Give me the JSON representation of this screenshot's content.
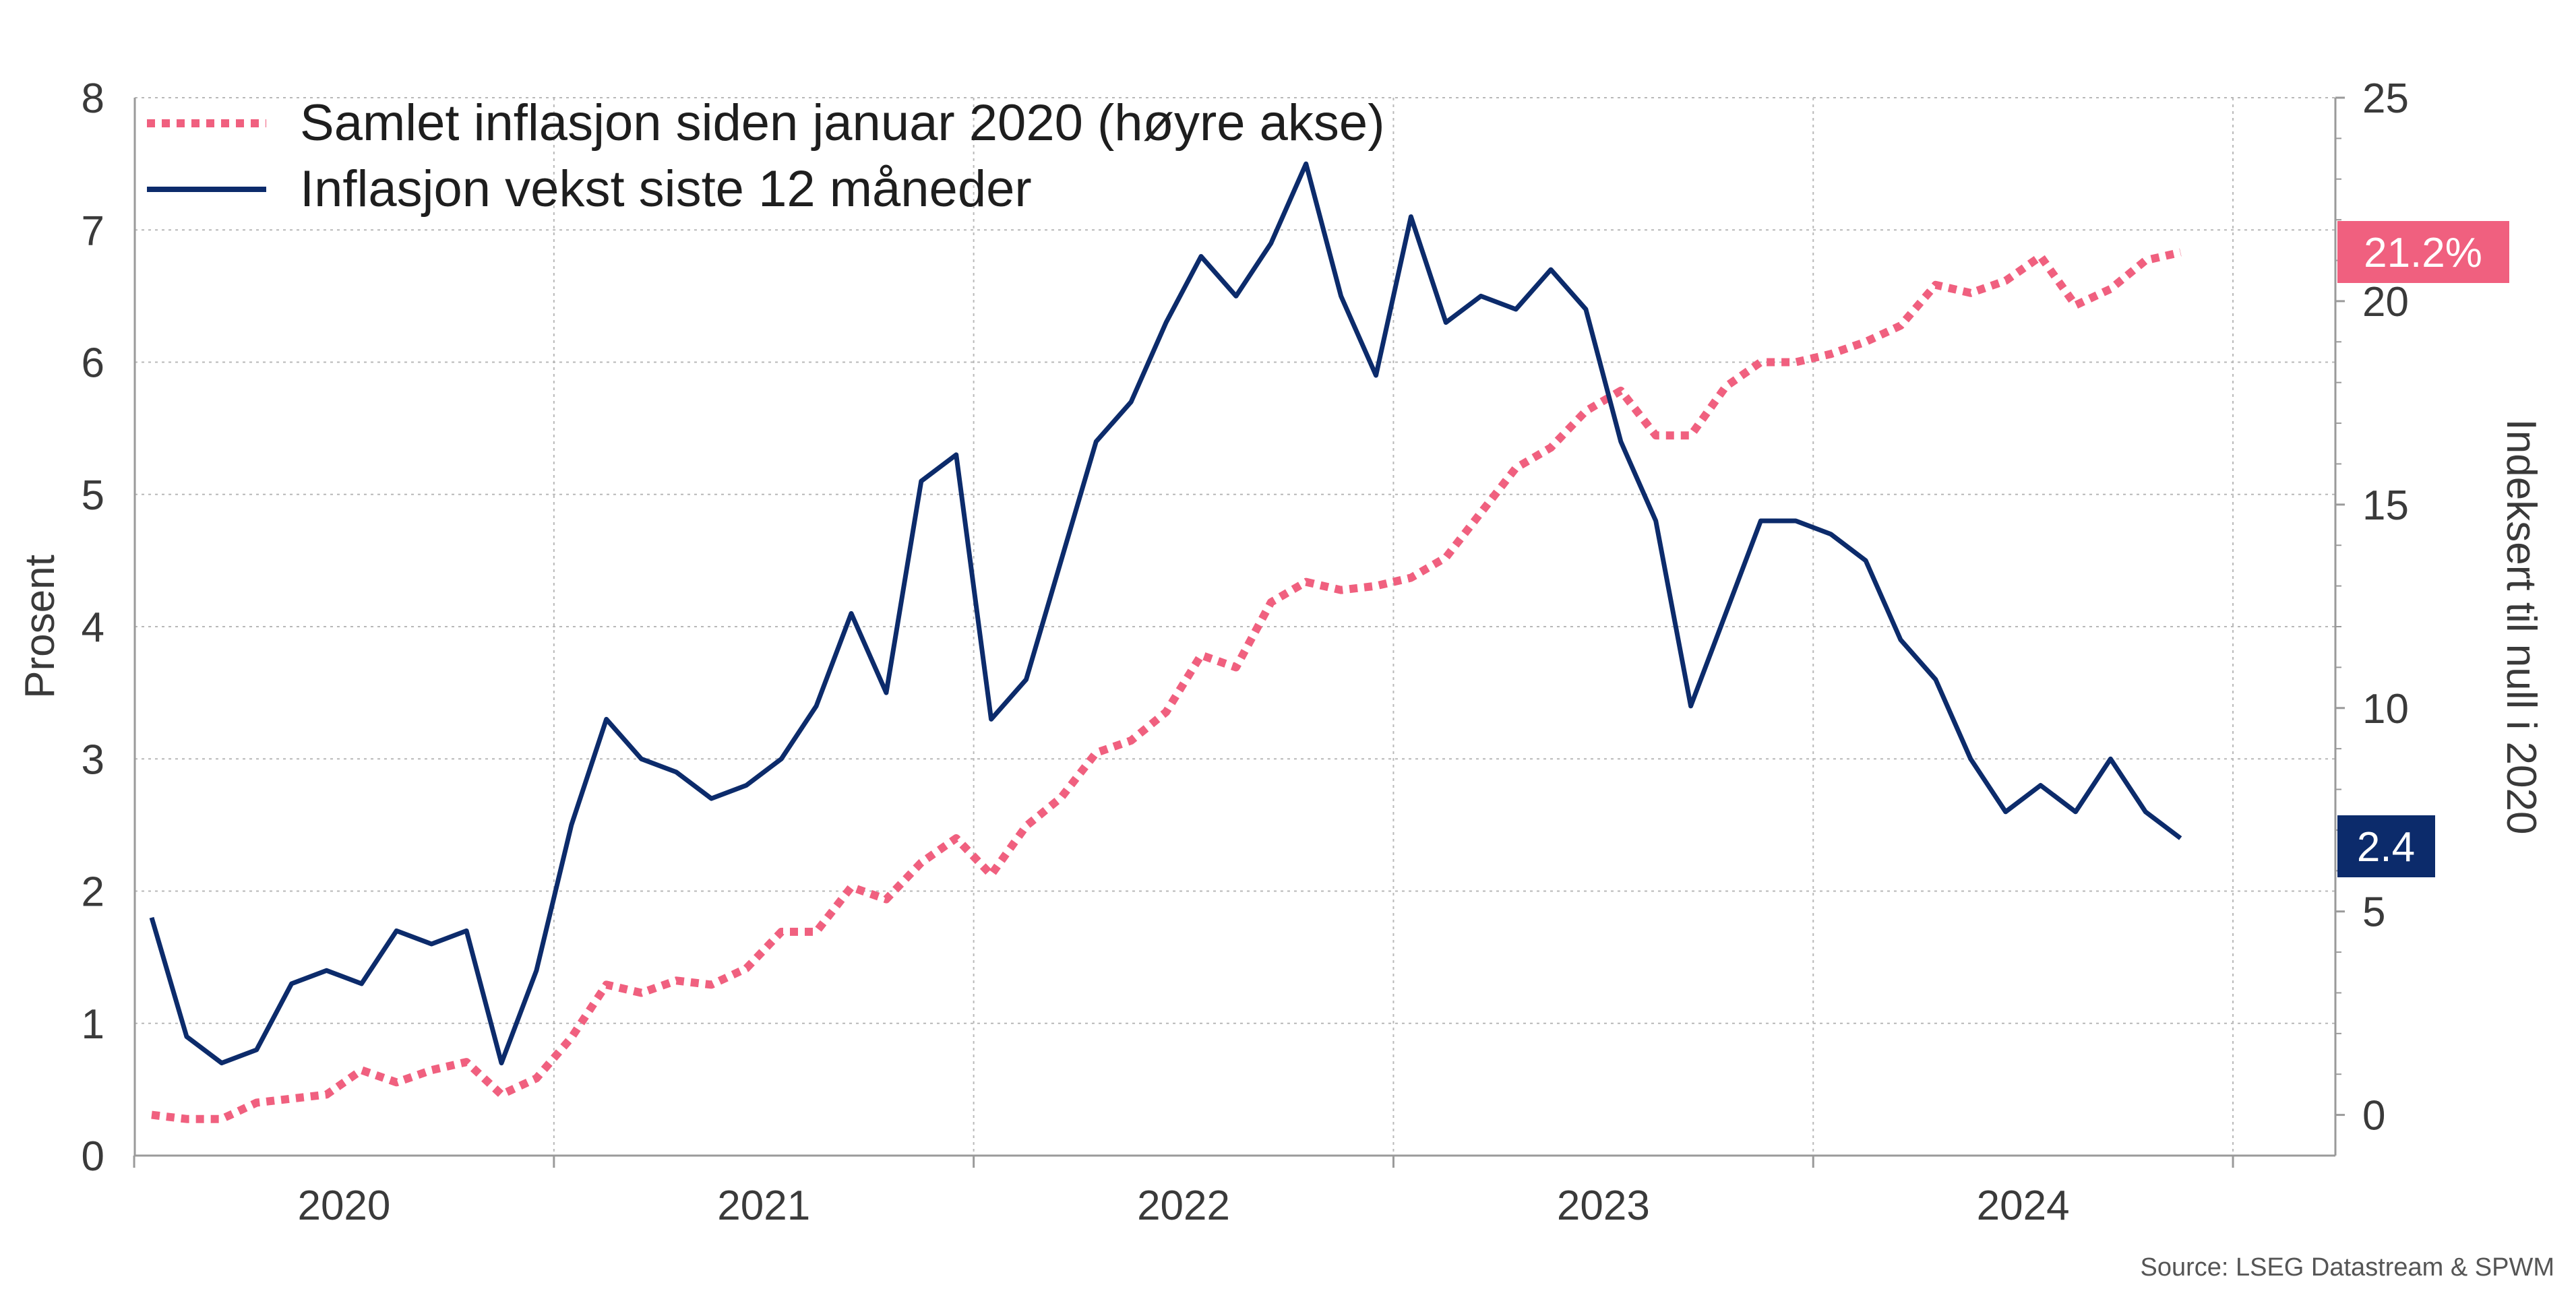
{
  "chart_data": {
    "type": "line",
    "title": "",
    "ylabel_left": "Prosent",
    "ylabel_right": "Indeksert til null i 2020",
    "ylim_left": [
      0,
      8
    ],
    "ylim_right": [
      -1,
      25
    ],
    "yticks_left": [
      "0",
      "1",
      "2",
      "3",
      "4",
      "5",
      "6",
      "7",
      "8"
    ],
    "yticks_right": [
      "0",
      "5",
      "10",
      "15",
      "20",
      "25"
    ],
    "xtick_labels": [
      "2020",
      "2021",
      "2022",
      "2023",
      "2024"
    ],
    "grid": true,
    "source": "Source: LSEG Datastream & SPWM",
    "x_start": "2020-01",
    "series": [
      {
        "name": "Samlet inflasjon siden januar 2020 (høyre akse)",
        "axis": "right",
        "color": "#f0607f",
        "style": "dotted",
        "end_label": "21.2%",
        "values": [
          0.0,
          -0.1,
          -0.1,
          0.3,
          0.4,
          0.5,
          1.1,
          0.8,
          1.1,
          1.3,
          0.5,
          0.9,
          1.9,
          3.2,
          3.0,
          3.3,
          3.2,
          3.6,
          4.5,
          4.5,
          5.6,
          5.3,
          6.2,
          6.8,
          5.9,
          7.1,
          7.8,
          8.9,
          9.2,
          9.9,
          11.3,
          11.0,
          12.6,
          13.1,
          12.9,
          13.0,
          13.2,
          13.7,
          14.8,
          15.9,
          16.4,
          17.3,
          17.8,
          16.7,
          16.7,
          17.9,
          18.5,
          18.5,
          18.7,
          19.0,
          19.4,
          20.4,
          20.2,
          20.5,
          21.1,
          19.9,
          20.3,
          21.0,
          21.2
        ],
        "notes": "right-axis percent, index 2020=0"
      },
      {
        "name": "Inflasjon vekst siste 12 måneder",
        "axis": "left",
        "color": "#0c2b6b",
        "style": "solid",
        "end_label": "2.4",
        "values": [
          1.8,
          0.9,
          0.7,
          0.8,
          1.3,
          1.4,
          1.3,
          1.7,
          1.6,
          1.7,
          0.7,
          1.4,
          2.5,
          3.3,
          3.0,
          2.9,
          2.7,
          2.8,
          3.0,
          3.4,
          4.1,
          3.5,
          5.1,
          5.3,
          3.3,
          3.6,
          4.5,
          5.4,
          5.7,
          6.3,
          6.8,
          6.5,
          6.9,
          7.5,
          6.5,
          5.9,
          7.1,
          6.3,
          6.5,
          6.4,
          6.7,
          6.4,
          5.4,
          4.8,
          3.4,
          4.1,
          4.8,
          4.8,
          4.7,
          4.5,
          3.9,
          3.6,
          3.0,
          2.6,
          2.8,
          2.6,
          3.0,
          2.6,
          2.4
        ]
      }
    ]
  }
}
